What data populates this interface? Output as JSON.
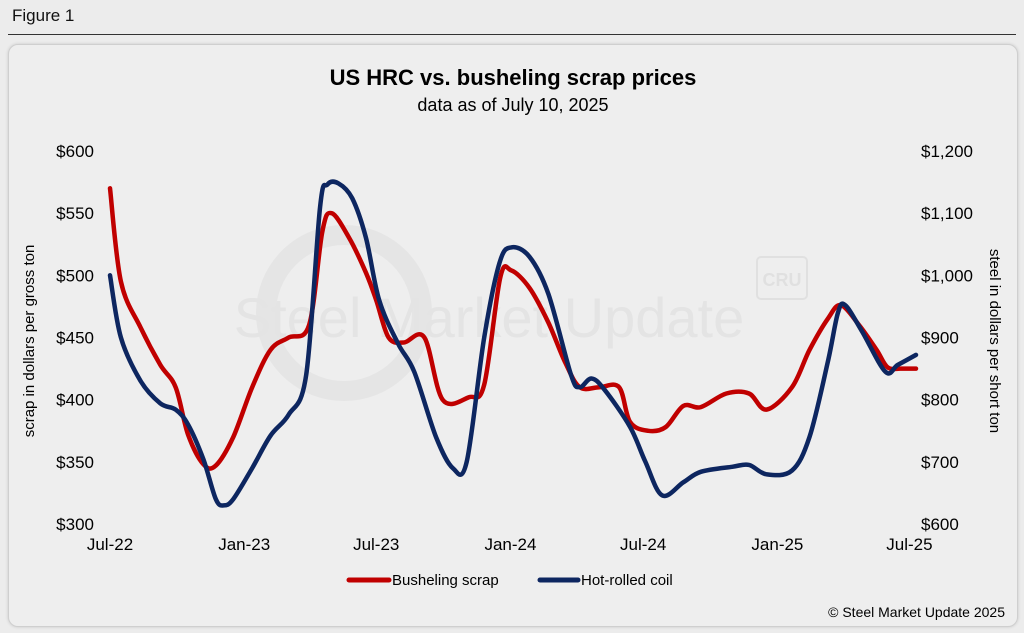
{
  "figure_label": "Figure 1",
  "watermark": {
    "text": "Steel Market Update",
    "logo": "CRU"
  },
  "credit": "© Steel Market Update 2025",
  "colors": {
    "scrap": "#c00000",
    "hrc": "#0d2660",
    "background": "#eeeeee"
  },
  "chart_data": {
    "type": "line",
    "title": "US HRC vs. busheling scrap prices",
    "subtitle": "data as of July 10, 2025",
    "ylabel_left": "scrap in dollars per gross ton",
    "ylabel_right": "steel in dollars per short ton",
    "grid": false,
    "legend_position": "bottom",
    "x_range": [
      "2022-07-01",
      "2025-07-10"
    ],
    "x_tick_labels": [
      "Jul-22",
      "Jan-23",
      "Jul-23",
      "Jan-24",
      "Jul-24",
      "Jan-25",
      "Jul-25"
    ],
    "x_tick_dates": [
      "2022-07-01",
      "2023-01-01",
      "2023-07-01",
      "2024-01-01",
      "2024-07-01",
      "2025-01-01",
      "2025-07-01"
    ],
    "y_left": {
      "range": [
        300,
        600
      ],
      "tick_labels": [
        "$300",
        "$350",
        "$400",
        "$450",
        "$500",
        "$550",
        "$600"
      ],
      "tick_values": [
        300,
        350,
        400,
        450,
        500,
        550,
        600
      ]
    },
    "y_right": {
      "range": [
        600,
        1200
      ],
      "tick_labels": [
        "$600",
        "$700",
        "$800",
        "$900",
        "$1,000",
        "$1,100",
        "$1,200"
      ],
      "tick_values": [
        600,
        700,
        800,
        900,
        1000,
        1100,
        1200
      ]
    },
    "series": [
      {
        "name": "Busheling scrap",
        "axis": "left",
        "points": [
          [
            "2022-07-01",
            570
          ],
          [
            "2022-07-16",
            495
          ],
          [
            "2022-08-12",
            458
          ],
          [
            "2022-09-08",
            428
          ],
          [
            "2022-09-29",
            410
          ],
          [
            "2022-10-16",
            372
          ],
          [
            "2022-11-06",
            348
          ],
          [
            "2022-11-23",
            347
          ],
          [
            "2022-12-17",
            370
          ],
          [
            "2023-01-12",
            410
          ],
          [
            "2023-02-06",
            440
          ],
          [
            "2023-03-03",
            450
          ],
          [
            "2023-03-31",
            460
          ],
          [
            "2023-04-18",
            535
          ],
          [
            "2023-05-01",
            550
          ],
          [
            "2023-05-25",
            530
          ],
          [
            "2023-06-17",
            502
          ],
          [
            "2023-07-01",
            480
          ],
          [
            "2023-07-18",
            450
          ],
          [
            "2023-08-08",
            446
          ],
          [
            "2023-09-05",
            450
          ],
          [
            "2023-09-30",
            400
          ],
          [
            "2023-11-05",
            402
          ],
          [
            "2023-11-26",
            412
          ],
          [
            "2023-12-18",
            498
          ],
          [
            "2024-01-02",
            504
          ],
          [
            "2024-01-27",
            490
          ],
          [
            "2024-02-22",
            462
          ],
          [
            "2024-03-16",
            430
          ],
          [
            "2024-04-05",
            410
          ],
          [
            "2024-05-02",
            410
          ],
          [
            "2024-05-29",
            410
          ],
          [
            "2024-06-13",
            382
          ],
          [
            "2024-07-08",
            375
          ],
          [
            "2024-08-01",
            378
          ],
          [
            "2024-08-25",
            395
          ],
          [
            "2024-09-18",
            394
          ],
          [
            "2024-10-23",
            405
          ],
          [
            "2024-11-23",
            405
          ],
          [
            "2024-12-17",
            392
          ],
          [
            "2025-01-21",
            410
          ],
          [
            "2025-02-14",
            440
          ],
          [
            "2025-03-11",
            465
          ],
          [
            "2025-03-29",
            476
          ],
          [
            "2025-04-23",
            460
          ],
          [
            "2025-05-17",
            440
          ],
          [
            "2025-06-01",
            426
          ],
          [
            "2025-06-19",
            425
          ],
          [
            "2025-07-10",
            425
          ]
        ]
      },
      {
        "name": "Hot-rolled coil",
        "axis": "right",
        "points": [
          [
            "2022-07-01",
            1000
          ],
          [
            "2022-07-16",
            900
          ],
          [
            "2022-08-12",
            830
          ],
          [
            "2022-09-08",
            794
          ],
          [
            "2022-09-29",
            784
          ],
          [
            "2022-10-16",
            760
          ],
          [
            "2022-11-06",
            704
          ],
          [
            "2022-11-23",
            640
          ],
          [
            "2022-12-04",
            630
          ],
          [
            "2022-12-17",
            640
          ],
          [
            "2023-01-12",
            690
          ],
          [
            "2023-02-06",
            742
          ],
          [
            "2023-03-03",
            776
          ],
          [
            "2023-03-27",
            840
          ],
          [
            "2023-04-15",
            1110
          ],
          [
            "2023-04-25",
            1146
          ],
          [
            "2023-05-10",
            1148
          ],
          [
            "2023-05-29",
            1124
          ],
          [
            "2023-06-17",
            1060
          ],
          [
            "2023-07-05",
            960
          ],
          [
            "2023-07-31",
            890
          ],
          [
            "2023-08-22",
            845
          ],
          [
            "2023-09-21",
            740
          ],
          [
            "2023-10-14",
            690
          ],
          [
            "2023-11-02",
            700
          ],
          [
            "2023-11-26",
            900
          ],
          [
            "2023-12-17",
            1020
          ],
          [
            "2024-01-02",
            1045
          ],
          [
            "2024-01-27",
            1030
          ],
          [
            "2024-02-22",
            970
          ],
          [
            "2024-03-24",
            840
          ],
          [
            "2024-04-05",
            820
          ],
          [
            "2024-04-21",
            834
          ],
          [
            "2024-05-09",
            816
          ],
          [
            "2024-06-13",
            756
          ],
          [
            "2024-07-04",
            700
          ],
          [
            "2024-07-27",
            646
          ],
          [
            "2024-08-25",
            667
          ],
          [
            "2024-09-18",
            684
          ],
          [
            "2024-10-31",
            692
          ],
          [
            "2024-11-23",
            695
          ],
          [
            "2024-12-17",
            680
          ],
          [
            "2025-01-21",
            686
          ],
          [
            "2025-02-14",
            740
          ],
          [
            "2025-03-11",
            860
          ],
          [
            "2025-03-25",
            940
          ],
          [
            "2025-04-04",
            952
          ],
          [
            "2025-04-27",
            910
          ],
          [
            "2025-05-29",
            845
          ],
          [
            "2025-06-15",
            856
          ],
          [
            "2025-07-10",
            872
          ]
        ]
      }
    ]
  }
}
